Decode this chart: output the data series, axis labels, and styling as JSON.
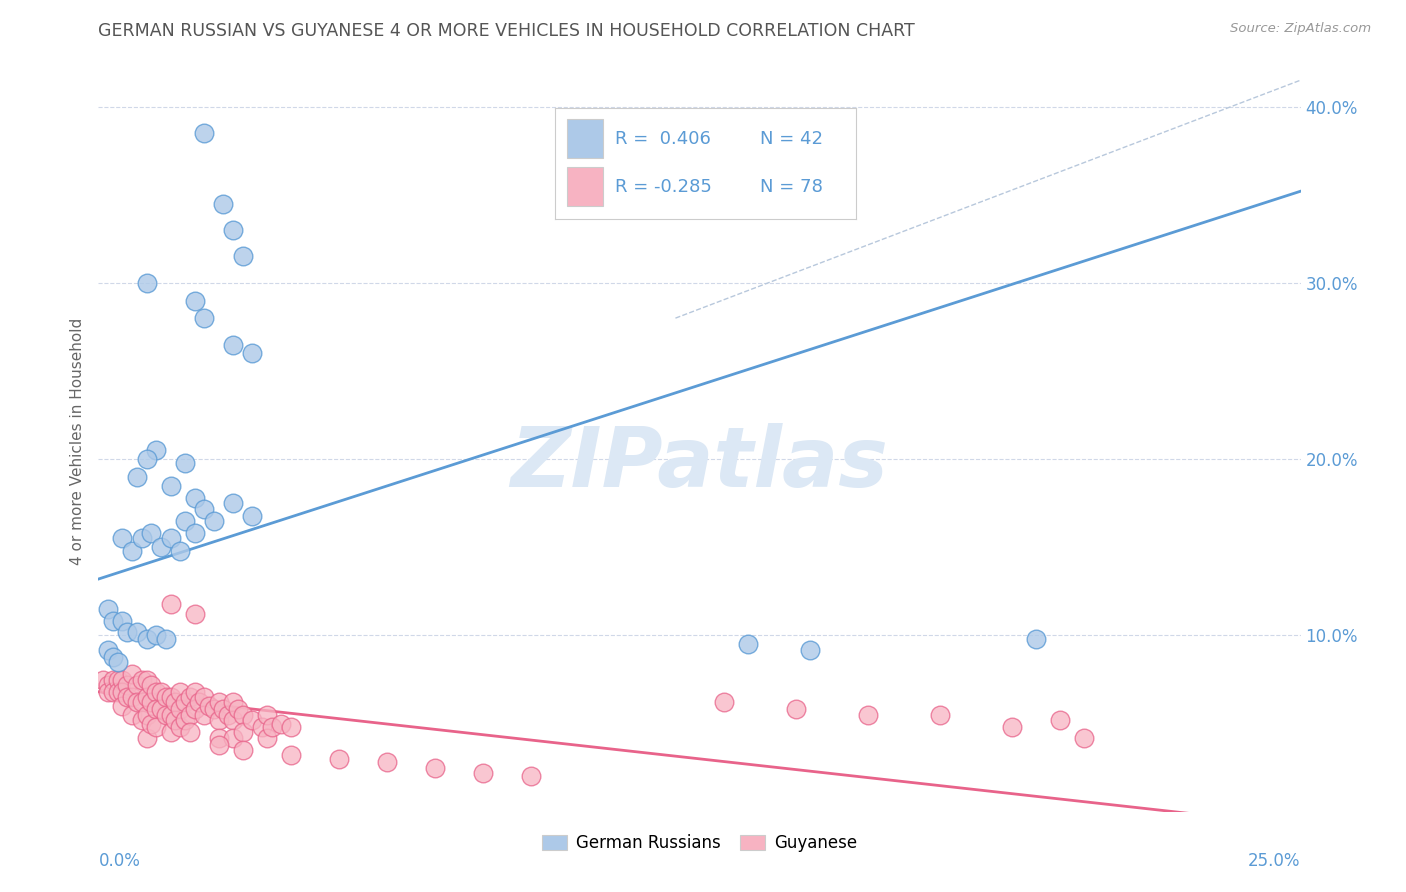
{
  "title": "GERMAN RUSSIAN VS GUYANESE 4 OR MORE VEHICLES IN HOUSEHOLD CORRELATION CHART",
  "source": "Source: ZipAtlas.com",
  "ylabel": "4 or more Vehicles in Household",
  "ytick_vals": [
    0.0,
    0.1,
    0.2,
    0.3,
    0.4
  ],
  "ytick_labels": [
    "",
    "10.0%",
    "20.0%",
    "30.0%",
    "40.0%"
  ],
  "xlim": [
    0.0,
    0.25
  ],
  "ylim": [
    -0.02,
    0.44
  ],
  "plot_ylim": [
    0.0,
    0.42
  ],
  "blue_color": "#adc9e8",
  "pink_color": "#f7b3c2",
  "blue_line_color": "#5b9bd5",
  "pink_line_color": "#e8638a",
  "dashed_line_color": "#b8c8dc",
  "watermark_color": "#dce8f5",
  "axis_color": "#5b9bd5",
  "grid_color": "#d0d8e8",
  "blue_scatter": [
    [
      0.022,
      0.385
    ],
    [
      0.026,
      0.345
    ],
    [
      0.028,
      0.33
    ],
    [
      0.03,
      0.315
    ],
    [
      0.01,
      0.3
    ],
    [
      0.02,
      0.29
    ],
    [
      0.022,
      0.28
    ],
    [
      0.028,
      0.265
    ],
    [
      0.032,
      0.26
    ],
    [
      0.012,
      0.205
    ],
    [
      0.018,
      0.198
    ],
    [
      0.015,
      0.185
    ],
    [
      0.02,
      0.178
    ],
    [
      0.01,
      0.2
    ],
    [
      0.008,
      0.19
    ],
    [
      0.018,
      0.165
    ],
    [
      0.02,
      0.158
    ],
    [
      0.022,
      0.172
    ],
    [
      0.024,
      0.165
    ],
    [
      0.028,
      0.175
    ],
    [
      0.032,
      0.168
    ],
    [
      0.005,
      0.155
    ],
    [
      0.007,
      0.148
    ],
    [
      0.009,
      0.155
    ],
    [
      0.011,
      0.158
    ],
    [
      0.013,
      0.15
    ],
    [
      0.015,
      0.155
    ],
    [
      0.017,
      0.148
    ],
    [
      0.002,
      0.115
    ],
    [
      0.003,
      0.108
    ],
    [
      0.005,
      0.108
    ],
    [
      0.006,
      0.102
    ],
    [
      0.008,
      0.102
    ],
    [
      0.01,
      0.098
    ],
    [
      0.012,
      0.1
    ],
    [
      0.014,
      0.098
    ],
    [
      0.002,
      0.092
    ],
    [
      0.003,
      0.088
    ],
    [
      0.004,
      0.085
    ],
    [
      0.195,
      0.098
    ],
    [
      0.135,
      0.095
    ],
    [
      0.148,
      0.092
    ]
  ],
  "pink_scatter": [
    [
      0.001,
      0.075
    ],
    [
      0.002,
      0.072
    ],
    [
      0.002,
      0.068
    ],
    [
      0.003,
      0.075
    ],
    [
      0.003,
      0.068
    ],
    [
      0.004,
      0.075
    ],
    [
      0.004,
      0.068
    ],
    [
      0.005,
      0.075
    ],
    [
      0.005,
      0.068
    ],
    [
      0.005,
      0.06
    ],
    [
      0.006,
      0.072
    ],
    [
      0.006,
      0.065
    ],
    [
      0.007,
      0.078
    ],
    [
      0.007,
      0.065
    ],
    [
      0.007,
      0.055
    ],
    [
      0.008,
      0.072
    ],
    [
      0.008,
      0.062
    ],
    [
      0.009,
      0.075
    ],
    [
      0.009,
      0.062
    ],
    [
      0.009,
      0.052
    ],
    [
      0.01,
      0.075
    ],
    [
      0.01,
      0.065
    ],
    [
      0.01,
      0.055
    ],
    [
      0.01,
      0.042
    ],
    [
      0.011,
      0.072
    ],
    [
      0.011,
      0.062
    ],
    [
      0.011,
      0.05
    ],
    [
      0.012,
      0.068
    ],
    [
      0.012,
      0.058
    ],
    [
      0.012,
      0.048
    ],
    [
      0.013,
      0.068
    ],
    [
      0.013,
      0.058
    ],
    [
      0.014,
      0.065
    ],
    [
      0.014,
      0.055
    ],
    [
      0.015,
      0.065
    ],
    [
      0.015,
      0.055
    ],
    [
      0.015,
      0.045
    ],
    [
      0.016,
      0.062
    ],
    [
      0.016,
      0.052
    ],
    [
      0.017,
      0.068
    ],
    [
      0.017,
      0.058
    ],
    [
      0.017,
      0.048
    ],
    [
      0.018,
      0.062
    ],
    [
      0.018,
      0.052
    ],
    [
      0.019,
      0.065
    ],
    [
      0.019,
      0.055
    ],
    [
      0.019,
      0.045
    ],
    [
      0.02,
      0.068
    ],
    [
      0.02,
      0.058
    ],
    [
      0.021,
      0.062
    ],
    [
      0.022,
      0.065
    ],
    [
      0.022,
      0.055
    ],
    [
      0.023,
      0.06
    ],
    [
      0.024,
      0.058
    ],
    [
      0.025,
      0.062
    ],
    [
      0.025,
      0.052
    ],
    [
      0.025,
      0.042
    ],
    [
      0.026,
      0.058
    ],
    [
      0.027,
      0.055
    ],
    [
      0.028,
      0.062
    ],
    [
      0.028,
      0.052
    ],
    [
      0.028,
      0.042
    ],
    [
      0.029,
      0.058
    ],
    [
      0.03,
      0.055
    ],
    [
      0.03,
      0.045
    ],
    [
      0.032,
      0.052
    ],
    [
      0.034,
      0.048
    ],
    [
      0.035,
      0.055
    ],
    [
      0.035,
      0.042
    ],
    [
      0.036,
      0.048
    ],
    [
      0.038,
      0.05
    ],
    [
      0.04,
      0.048
    ],
    [
      0.015,
      0.118
    ],
    [
      0.02,
      0.112
    ],
    [
      0.13,
      0.062
    ],
    [
      0.145,
      0.058
    ],
    [
      0.16,
      0.055
    ],
    [
      0.175,
      0.055
    ],
    [
      0.19,
      0.048
    ],
    [
      0.2,
      0.052
    ],
    [
      0.205,
      0.042
    ],
    [
      0.025,
      0.038
    ],
    [
      0.03,
      0.035
    ],
    [
      0.04,
      0.032
    ],
    [
      0.05,
      0.03
    ],
    [
      0.06,
      0.028
    ],
    [
      0.07,
      0.025
    ],
    [
      0.08,
      0.022
    ],
    [
      0.09,
      0.02
    ]
  ],
  "blue_line": [
    [
      0.0,
      0.132
    ],
    [
      0.25,
      0.352
    ]
  ],
  "pink_line": [
    [
      0.0,
      0.068
    ],
    [
      0.25,
      -0.008
    ]
  ],
  "dashed_line": [
    [
      0.12,
      0.28
    ],
    [
      0.25,
      0.415
    ]
  ]
}
